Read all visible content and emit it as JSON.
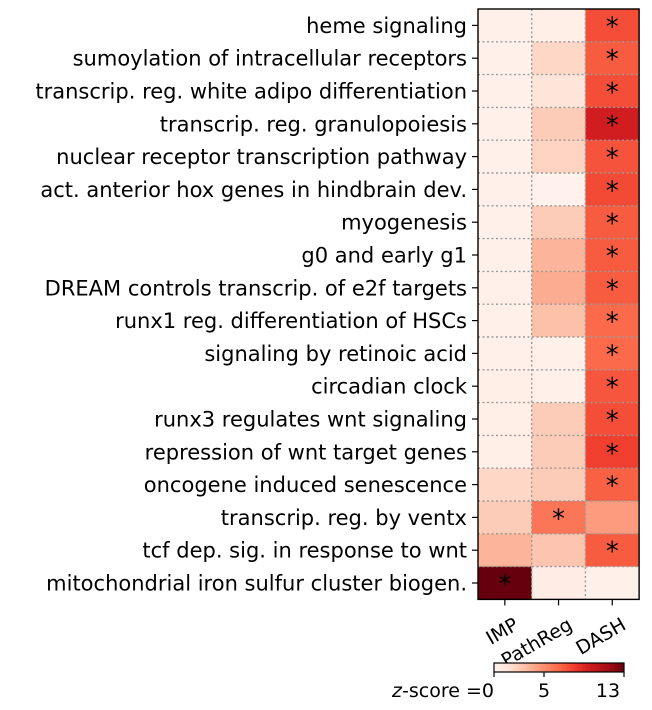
{
  "chart_data": {
    "type": "heatmap",
    "rows": [
      "heme signaling",
      "sumoylation of intracellular receptors",
      "transcrip. reg. white adipo differentiation",
      "transcrip. reg. granulopoiesis",
      "nuclear receptor transcription pathway",
      "act. anterior hox genes in hindbrain dev.",
      "myogenesis",
      "g0 and early g1",
      "DREAM controls transcrip. of e2f targets",
      "runx1 reg. differentiation of HSCs",
      "signaling by retinoic acid",
      "circadian clock",
      "runx3 regulates wnt signaling",
      "repression of wnt target genes",
      "oncogene induced senescence",
      "transcrip. reg. by ventx",
      "tcf dep. sig. in response to wnt",
      "mitochondrial iron sulfur cluster biogen."
    ],
    "columns": [
      "IMP",
      "PathReg",
      "DASH"
    ],
    "values": [
      [
        0.3,
        0.5,
        7.5
      ],
      [
        0.3,
        2.0,
        7.0
      ],
      [
        0.3,
        1.2,
        7.5
      ],
      [
        0.3,
        2.5,
        9.5
      ],
      [
        0.3,
        2.2,
        7.3
      ],
      [
        0.3,
        0.2,
        7.6
      ],
      [
        0.3,
        2.5,
        7.0
      ],
      [
        0.3,
        3.5,
        7.0
      ],
      [
        0.3,
        3.8,
        7.0
      ],
      [
        0.3,
        3.0,
        6.5
      ],
      [
        0.3,
        0.3,
        6.5
      ],
      [
        0.5,
        0.4,
        7.2
      ],
      [
        0.5,
        2.5,
        7.5
      ],
      [
        0.5,
        2.5,
        8.0
      ],
      [
        2.0,
        2.5,
        6.8
      ],
      [
        2.5,
        6.0,
        4.5
      ],
      [
        3.5,
        2.8,
        7.0
      ],
      [
        13.0,
        0.6,
        0.3
      ]
    ],
    "significant": [
      [
        false,
        false,
        true
      ],
      [
        false,
        false,
        true
      ],
      [
        false,
        false,
        true
      ],
      [
        false,
        false,
        true
      ],
      [
        false,
        false,
        true
      ],
      [
        false,
        false,
        true
      ],
      [
        false,
        false,
        true
      ],
      [
        false,
        false,
        true
      ],
      [
        false,
        false,
        true
      ],
      [
        false,
        false,
        true
      ],
      [
        false,
        false,
        true
      ],
      [
        false,
        false,
        true
      ],
      [
        false,
        false,
        true
      ],
      [
        false,
        false,
        true
      ],
      [
        false,
        false,
        true
      ],
      [
        false,
        true,
        false
      ],
      [
        false,
        false,
        true
      ],
      [
        true,
        false,
        false
      ]
    ],
    "marker": "*",
    "colormap": "Reds",
    "vmin": 0,
    "vmax": 13,
    "colorbar": {
      "label_prefix": "z",
      "label_suffix": "-score =",
      "ticks": [
        0,
        5,
        13
      ]
    }
  }
}
